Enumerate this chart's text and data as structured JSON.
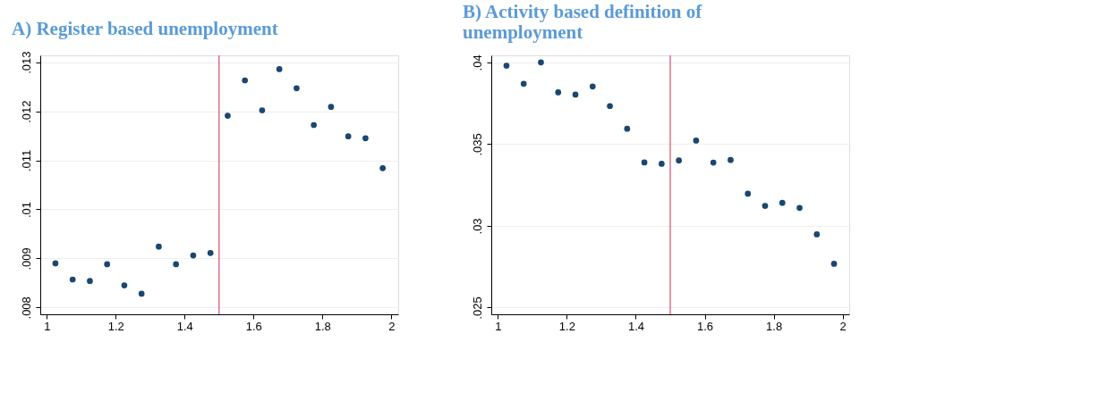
{
  "chart_data": [
    {
      "type": "scatter",
      "title": "A)   Register based unemployment",
      "x": [
        1.025,
        1.075,
        1.125,
        1.175,
        1.225,
        1.275,
        1.325,
        1.375,
        1.425,
        1.475,
        1.525,
        1.575,
        1.625,
        1.675,
        1.725,
        1.775,
        1.825,
        1.875,
        1.925,
        1.975
      ],
      "series": [
        {
          "color": "#1a476f",
          "values": [
            0.0089,
            0.00857,
            0.00854,
            0.00888,
            0.00845,
            0.00828,
            0.00924,
            0.00888,
            0.00906,
            0.00911,
            0.01191,
            0.01263,
            0.01202,
            0.01286,
            0.01247,
            0.01172,
            0.01209,
            0.01149,
            0.01145,
            0.01084
          ]
        }
      ],
      "xlim": [
        0.981,
        2.02
      ],
      "xticks": [
        1,
        1.2,
        1.4,
        1.6,
        1.8,
        2
      ],
      "ylim": [
        0.00786,
        0.01314
      ],
      "yticks": [
        {
          "value": 0.008,
          "label": ".008"
        },
        {
          "value": 0.009,
          "label": ".009"
        },
        {
          "value": 0.01,
          "label": ".01"
        },
        {
          "value": 0.011,
          "label": ".011"
        },
        {
          "value": 0.012,
          "label": ".012"
        },
        {
          "value": 0.013,
          "label": ".013"
        }
      ],
      "ref_lines": [
        {
          "axis": "x",
          "value": 1.5,
          "color": "#d0506a"
        }
      ],
      "grid": "y",
      "marker": "circle"
    },
    {
      "type": "scatter",
      "title": "B)   Activity based definition of unemployment",
      "x": [
        1.025,
        1.075,
        1.125,
        1.175,
        1.225,
        1.275,
        1.325,
        1.375,
        1.425,
        1.475,
        1.525,
        1.575,
        1.625,
        1.675,
        1.725,
        1.775,
        1.825,
        1.875,
        1.925,
        1.975
      ],
      "series": [
        {
          "color": "#1a476f",
          "values": [
            0.0398,
            0.03869,
            0.04,
            0.03817,
            0.03803,
            0.03853,
            0.03733,
            0.03594,
            0.03388,
            0.0338,
            0.034,
            0.03522,
            0.03387,
            0.03403,
            0.03197,
            0.03122,
            0.03141,
            0.0311,
            0.02948,
            0.02768
          ]
        }
      ],
      "xlim": [
        0.981,
        2.019
      ],
      "xticks": [
        1,
        1.2,
        1.4,
        1.6,
        1.8,
        2
      ],
      "ylim": [
        0.02459,
        0.04043
      ],
      "yticks": [
        {
          "value": 0.025,
          "label": ".025"
        },
        {
          "value": 0.03,
          "label": ".03"
        },
        {
          "value": 0.035,
          "label": ".035"
        },
        {
          "value": 0.04,
          "label": ".04"
        }
      ],
      "ref_lines": [
        {
          "axis": "x",
          "value": 1.5,
          "color": "#d0506a"
        }
      ],
      "grid": "y",
      "marker": "circle"
    }
  ]
}
